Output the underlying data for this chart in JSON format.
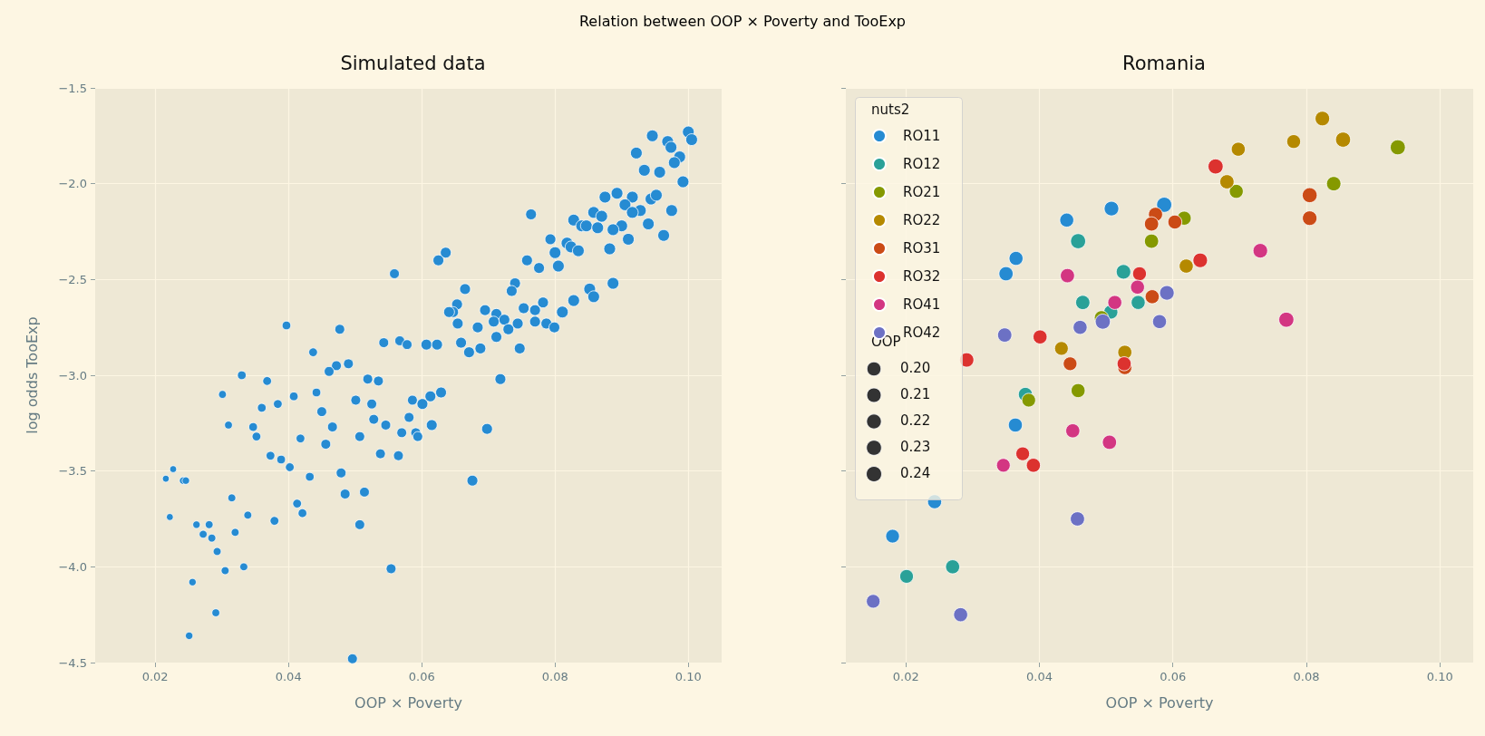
{
  "chart_data": [
    {
      "type": "bubble",
      "title": "Simulated data",
      "xlabel": "OOP × Poverty",
      "ylabel": "log odds TooExp",
      "annotations": [
        "Relation between OOP × Poverty and TooExp"
      ],
      "color": "#268bd2",
      "x": [
        0.1,
        0.1005,
        0.0946,
        0.0969,
        0.0974,
        0.0987,
        0.0979,
        0.0922,
        0.0934,
        0.0957,
        0.0992,
        0.0893,
        0.0875,
        0.0916,
        0.0905,
        0.0944,
        0.0952,
        0.0928,
        0.0916,
        0.0975,
        0.0764,
        0.0828,
        0.0858,
        0.087,
        0.084,
        0.0847,
        0.0864,
        0.09,
        0.0887,
        0.094,
        0.0963,
        0.091,
        0.0793,
        0.0818,
        0.0824,
        0.0835,
        0.08,
        0.0882,
        0.0805,
        0.0758,
        0.0776,
        0.0636,
        0.0625,
        0.0559,
        0.074,
        0.0735,
        0.0852,
        0.0858,
        0.0887,
        0.0665,
        0.0828,
        0.0782,
        0.0653,
        0.0647,
        0.0641,
        0.0753,
        0.077,
        0.0695,
        0.0811,
        0.0712,
        0.0724,
        0.0654,
        0.0708,
        0.0744,
        0.077,
        0.0787,
        0.0799,
        0.0684,
        0.073,
        0.0712,
        0.0659,
        0.0747,
        0.0688,
        0.0671,
        0.0607,
        0.0623,
        0.0543,
        0.0567,
        0.0578,
        0.0397,
        0.0477,
        0.0437,
        0.049,
        0.0472,
        0.0461,
        0.033,
        0.0368,
        0.0519,
        0.0535,
        0.0718,
        0.0301,
        0.0629,
        0.0613,
        0.0586,
        0.0601,
        0.0408,
        0.0442,
        0.0501,
        0.0525,
        0.036,
        0.0384,
        0.045,
        0.031,
        0.0347,
        0.0352,
        0.0466,
        0.0528,
        0.0546,
        0.0581,
        0.0615,
        0.0698,
        0.057,
        0.0591,
        0.0594,
        0.0507,
        0.0418,
        0.0456,
        0.0373,
        0.0389,
        0.0538,
        0.0565,
        0.0402,
        0.0432,
        0.0479,
        0.0227,
        0.0216,
        0.0242,
        0.0246,
        0.0676,
        0.0315,
        0.0485,
        0.0514,
        0.0413,
        0.0421,
        0.0222,
        0.0262,
        0.0281,
        0.0339,
        0.0379,
        0.0272,
        0.0285,
        0.032,
        0.0507,
        0.0293,
        0.0333,
        0.0305,
        0.0554,
        0.0256,
        0.0291,
        0.0251,
        0.0496
      ],
      "values": [
        -1.73,
        -1.77,
        -1.75,
        -1.78,
        -1.81,
        -1.86,
        -1.89,
        -1.84,
        -1.93,
        -1.94,
        -1.99,
        -2.05,
        -2.07,
        -2.07,
        -2.11,
        -2.08,
        -2.06,
        -2.14,
        -2.15,
        -2.14,
        -2.16,
        -2.19,
        -2.15,
        -2.17,
        -2.22,
        -2.22,
        -2.23,
        -2.22,
        -2.24,
        -2.21,
        -2.27,
        -2.29,
        -2.29,
        -2.31,
        -2.33,
        -2.35,
        -2.36,
        -2.34,
        -2.43,
        -2.4,
        -2.44,
        -2.36,
        -2.4,
        -2.47,
        -2.52,
        -2.56,
        -2.55,
        -2.59,
        -2.52,
        -2.55,
        -2.61,
        -2.62,
        -2.63,
        -2.67,
        -2.67,
        -2.65,
        -2.66,
        -2.66,
        -2.67,
        -2.68,
        -2.71,
        -2.73,
        -2.72,
        -2.73,
        -2.72,
        -2.73,
        -2.75,
        -2.75,
        -2.76,
        -2.8,
        -2.83,
        -2.86,
        -2.86,
        -2.88,
        -2.84,
        -2.84,
        -2.83,
        -2.82,
        -2.84,
        -2.74,
        -2.76,
        -2.88,
        -2.94,
        -2.95,
        -2.98,
        -3.0,
        -3.03,
        -3.02,
        -3.03,
        -3.02,
        -3.1,
        -3.09,
        -3.11,
        -3.13,
        -3.15,
        -3.11,
        -3.09,
        -3.13,
        -3.15,
        -3.17,
        -3.15,
        -3.19,
        -3.26,
        -3.27,
        -3.32,
        -3.27,
        -3.23,
        -3.26,
        -3.22,
        -3.26,
        -3.28,
        -3.3,
        -3.3,
        -3.32,
        -3.32,
        -3.33,
        -3.36,
        -3.42,
        -3.44,
        -3.41,
        -3.42,
        -3.48,
        -3.53,
        -3.51,
        -3.49,
        -3.54,
        -3.55,
        -3.55,
        -3.55,
        -3.64,
        -3.62,
        -3.61,
        -3.67,
        -3.72,
        -3.74,
        -3.78,
        -3.78,
        -3.73,
        -3.76,
        -3.83,
        -3.85,
        -3.82,
        -3.78,
        -3.92,
        -4.0,
        -4.02,
        -4.01,
        -4.08,
        -4.24,
        -4.36,
        -4.48
      ],
      "sizes": [
        1,
        1,
        1,
        1,
        1,
        1,
        1,
        1,
        1,
        1,
        1,
        1,
        1,
        1,
        1,
        1,
        1,
        1,
        1,
        1,
        0.85,
        1,
        1,
        1,
        1,
        1,
        1,
        1,
        1,
        1,
        1,
        1,
        0.85,
        1,
        1,
        1,
        1,
        1,
        1,
        0.85,
        0.85,
        0.85,
        0.85,
        0.7,
        0.85,
        0.85,
        1,
        1,
        1,
        0.85,
        1,
        0.85,
        0.85,
        0.85,
        0.85,
        0.85,
        0.85,
        0.85,
        1,
        0.85,
        0.85,
        0.85,
        0.85,
        0.85,
        0.85,
        0.85,
        0.85,
        0.85,
        0.85,
        0.85,
        0.85,
        0.85,
        0.85,
        0.85,
        0.85,
        0.85,
        0.7,
        0.7,
        0.7,
        0.55,
        0.7,
        0.55,
        0.7,
        0.7,
        0.7,
        0.55,
        0.55,
        0.7,
        0.7,
        0.85,
        0.45,
        0.85,
        0.85,
        0.7,
        0.85,
        0.55,
        0.55,
        0.7,
        0.7,
        0.55,
        0.55,
        0.7,
        0.45,
        0.55,
        0.55,
        0.7,
        0.7,
        0.7,
        0.7,
        0.85,
        0.85,
        0.7,
        0.7,
        0.7,
        0.7,
        0.55,
        0.7,
        0.55,
        0.55,
        0.7,
        0.7,
        0.55,
        0.55,
        0.7,
        0.35,
        0.35,
        0.4,
        0.4,
        0.85,
        0.45,
        0.7,
        0.7,
        0.55,
        0.55,
        0.35,
        0.4,
        0.45,
        0.45,
        0.55,
        0.45,
        0.45,
        0.45,
        0.7,
        0.45,
        0.45,
        0.45,
        0.7,
        0.4,
        0.45,
        0.4,
        0.7
      ],
      "xlim": [
        0.011,
        0.105
      ],
      "xticks": [
        {
          "value": 0.02,
          "label": "0.02"
        },
        {
          "value": 0.04,
          "label": "0.04"
        },
        {
          "value": 0.06,
          "label": "0.06"
        },
        {
          "value": 0.08,
          "label": "0.08"
        },
        {
          "value": 0.1,
          "label": "0.10"
        }
      ],
      "ylim": [
        -4.5,
        -1.5
      ],
      "yticks": [
        {
          "value": -4.5,
          "label": "−4.5"
        },
        {
          "value": -4.0,
          "label": "−4.0"
        },
        {
          "value": -3.5,
          "label": "−3.5"
        },
        {
          "value": -3.0,
          "label": "−3.0"
        },
        {
          "value": -2.5,
          "label": "−2.5"
        },
        {
          "value": -2.0,
          "label": "−2.0"
        },
        {
          "value": -1.5,
          "label": "−1.5"
        }
      ],
      "grid": true
    },
    {
      "type": "bubble",
      "title": "Romania",
      "xlabel": "OOP × Poverty",
      "legend": "top left",
      "legend_title": "nuts2",
      "annotations": [
        "OOP"
      ],
      "tick_labels": "x",
      "size_legend": [
        {
          "value": 0.2,
          "label": "0.20"
        },
        {
          "value": 0.21,
          "label": "0.21"
        },
        {
          "value": 0.22,
          "label": "0.22"
        },
        {
          "value": 0.23,
          "label": "0.23"
        },
        {
          "value": 0.24,
          "label": "0.24"
        }
      ],
      "series": [
        {
          "name": "RO11",
          "color": "#268bd2",
          "x": [
            0.0441,
            0.0508,
            0.0587,
            0.0365,
            0.035,
            0.0364,
            0.0243,
            0.018
          ],
          "values": [
            -2.19,
            -2.13,
            -2.11,
            -2.39,
            -2.47,
            -3.26,
            -3.66,
            -3.84
          ],
          "sizes": [
            0.198,
            0.215,
            0.232,
            0.198,
            0.205,
            0.2,
            0.2,
            0.19
          ]
        },
        {
          "name": "RO12",
          "color": "#2aa198",
          "x": [
            0.0458,
            0.0526,
            0.0465,
            0.0507,
            0.0548,
            0.0379,
            0.0201,
            0.027
          ],
          "values": [
            -2.3,
            -2.46,
            -2.62,
            -2.67,
            -2.62,
            -3.1,
            -4.05,
            -4.0
          ],
          "sizes": [
            0.23,
            0.215,
            0.205,
            0.2,
            0.198,
            0.2,
            0.19,
            0.2
          ]
        },
        {
          "name": "RO21",
          "color": "#859900",
          "x": [
            0.0937,
            0.0841,
            0.0695,
            0.0617,
            0.0568,
            0.0493,
            0.0384,
            0.0458
          ],
          "values": [
            -1.81,
            -2.0,
            -2.04,
            -2.18,
            -2.3,
            -2.7,
            -3.13,
            -3.08
          ],
          "sizes": [
            0.23,
            0.21,
            0.198,
            0.198,
            0.205,
            0.205,
            0.19,
            0.2
          ]
        },
        {
          "name": "RO22",
          "color": "#b58900",
          "x": [
            0.0824,
            0.0855,
            0.0781,
            0.0698,
            0.0681,
            0.062,
            0.0528,
            0.0433
          ],
          "values": [
            -1.66,
            -1.77,
            -1.78,
            -1.82,
            -1.99,
            -2.43,
            -2.88,
            -2.86
          ],
          "sizes": [
            0.215,
            0.23,
            0.195,
            0.198,
            0.205,
            0.2,
            0.2,
            0.19
          ]
        },
        {
          "name": "RO31",
          "color": "#cb4b16",
          "x": [
            0.0805,
            0.0805,
            0.0574,
            0.0568,
            0.0603,
            0.0569,
            0.0446,
            0.0528
          ],
          "values": [
            -2.06,
            -2.18,
            -2.16,
            -2.21,
            -2.2,
            -2.59,
            -2.94,
            -2.96
          ],
          "sizes": [
            0.225,
            0.215,
            0.2,
            0.205,
            0.198,
            0.2,
            0.19,
            0.198
          ]
        },
        {
          "name": "RO32",
          "color": "#dc322f",
          "x": [
            0.0664,
            0.0641,
            0.055,
            0.0401,
            0.0291,
            0.0527,
            0.0375,
            0.0391
          ],
          "values": [
            -1.91,
            -2.4,
            -2.47,
            -2.8,
            -2.92,
            -2.94,
            -3.41,
            -3.47
          ],
          "sizes": [
            0.23,
            0.215,
            0.195,
            0.198,
            0.21,
            0.2,
            0.19,
            0.2
          ]
        },
        {
          "name": "RO41",
          "color": "#d33682",
          "x": [
            0.0731,
            0.0442,
            0.0547,
            0.0513,
            0.077,
            0.045,
            0.0505,
            0.0346
          ],
          "values": [
            -2.35,
            -2.48,
            -2.54,
            -2.62,
            -2.71,
            -3.29,
            -3.35,
            -3.47
          ],
          "sizes": [
            0.215,
            0.205,
            0.198,
            0.198,
            0.23,
            0.2,
            0.205,
            0.19
          ]
        },
        {
          "name": "RO42",
          "color": "#6c71c4",
          "x": [
            0.0591,
            0.0495,
            0.0461,
            0.058,
            0.0348,
            0.0457,
            0.0151,
            0.0282
          ],
          "values": [
            -2.57,
            -2.72,
            -2.75,
            -2.72,
            -2.79,
            -3.75,
            -4.18,
            -4.25
          ],
          "sizes": [
            0.215,
            0.23,
            0.198,
            0.198,
            0.205,
            0.205,
            0.19,
            0.2
          ]
        }
      ],
      "xlim": [
        0.011,
        0.105
      ],
      "xticks": [
        {
          "value": 0.02,
          "label": "0.02"
        },
        {
          "value": 0.04,
          "label": "0.04"
        },
        {
          "value": 0.06,
          "label": "0.06"
        },
        {
          "value": 0.08,
          "label": "0.08"
        },
        {
          "value": 0.1,
          "label": "0.10"
        }
      ],
      "ylim": [
        -4.5,
        -1.5
      ],
      "yticks": [
        {
          "value": -4.5,
          "label": null
        },
        {
          "value": -4.0,
          "label": null
        },
        {
          "value": -3.5,
          "label": null
        },
        {
          "value": -3.0,
          "label": null
        },
        {
          "value": -2.5,
          "label": null
        },
        {
          "value": -2.0,
          "label": null
        },
        {
          "value": -1.5,
          "label": null
        }
      ],
      "grid": true
    }
  ]
}
